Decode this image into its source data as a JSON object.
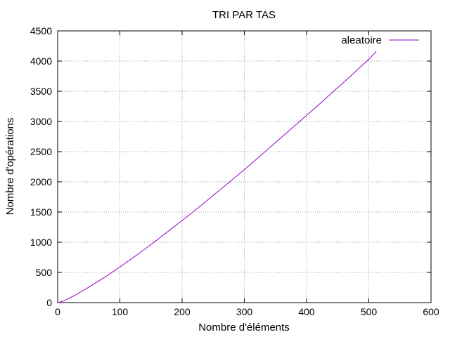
{
  "chart_data": {
    "type": "line",
    "title": "TRI PAR TAS",
    "xlabel": "Nombre d'éléments",
    "ylabel": "Nombre d'opérations",
    "xlim": [
      0,
      600
    ],
    "ylim": [
      0,
      4500
    ],
    "x_ticks": [
      0,
      100,
      200,
      300,
      400,
      500,
      600
    ],
    "y_ticks": [
      0,
      500,
      1000,
      1500,
      2000,
      2500,
      3000,
      3500,
      4000,
      4500
    ],
    "grid": true,
    "legend_position": "top-right",
    "series": [
      {
        "name": "aleatoire",
        "color": "#9400d3",
        "x": [
          1,
          10,
          20,
          30,
          40,
          50,
          60,
          70,
          80,
          90,
          100,
          120,
          140,
          160,
          180,
          200,
          220,
          240,
          260,
          280,
          300,
          320,
          340,
          360,
          380,
          400,
          420,
          440,
          460,
          480,
          500,
          512
        ],
        "y": [
          0,
          30,
          80,
          135,
          195,
          255,
          320,
          385,
          450,
          520,
          590,
          735,
          885,
          1040,
          1200,
          1360,
          1520,
          1690,
          1860,
          2030,
          2200,
          2380,
          2560,
          2740,
          2920,
          3100,
          3280,
          3470,
          3650,
          3840,
          4030,
          4160
        ]
      }
    ]
  }
}
